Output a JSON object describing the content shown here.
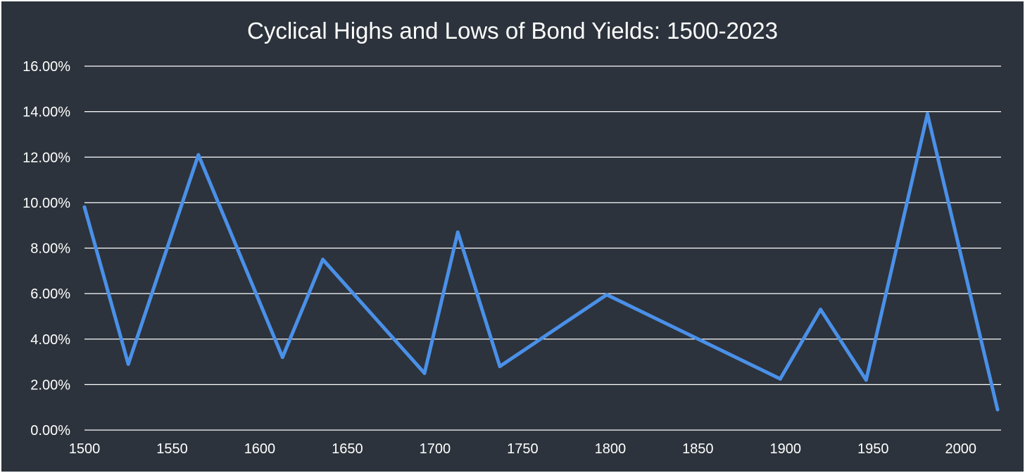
{
  "chart_data": {
    "type": "line",
    "title": "Cyclical Highs and Lows of Bond Yields: 1500-2023",
    "xlabel": "",
    "ylabel": "",
    "xlim": [
      1500,
      2023
    ],
    "ylim": [
      0,
      16
    ],
    "y_tick_values": [
      0,
      2,
      4,
      6,
      8,
      10,
      12,
      14,
      16
    ],
    "y_tick_labels": [
      "0.00%",
      "2.00%",
      "4.00%",
      "6.00%",
      "8.00%",
      "10.00%",
      "12.00%",
      "14.00%",
      "16.00%"
    ],
    "x_tick_values": [
      1500,
      1550,
      1600,
      1650,
      1700,
      1750,
      1800,
      1850,
      1900,
      1950,
      2000
    ],
    "x_tick_labels": [
      "1500",
      "1550",
      "1600",
      "1650",
      "1700",
      "1750",
      "1800",
      "1850",
      "1900",
      "1950",
      "2000"
    ],
    "grid": true,
    "legend": "none",
    "colors": {
      "background": "#2c333c",
      "line": "#4a90e8",
      "grid": "#ffffff",
      "text": "#ffffff"
    },
    "series": [
      {
        "x": [
          1500,
          1525,
          1565,
          1613,
          1636,
          1694,
          1713,
          1737,
          1798,
          1897,
          1920,
          1946,
          1981,
          2021
        ],
        "values": [
          9.8,
          2.9,
          12.1,
          3.2,
          7.5,
          2.5,
          8.7,
          2.8,
          5.95,
          2.25,
          5.3,
          2.2,
          13.9,
          0.9
        ]
      }
    ]
  }
}
